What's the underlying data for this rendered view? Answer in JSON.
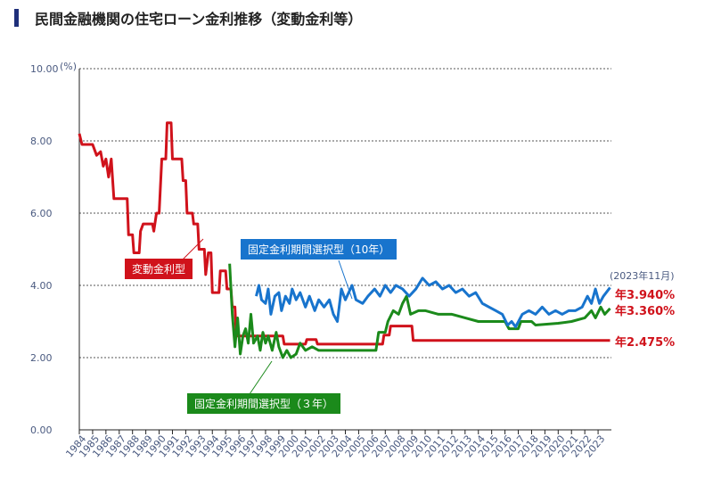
{
  "title": "民間金融機関の住宅ローン金利推移（変動金利等）",
  "chart_data": {
    "type": "line",
    "title": "民間金融機関の住宅ローン金利推移（変動金利等）",
    "ylabel": "(%)",
    "ylim": [
      0,
      10
    ],
    "yticks": [
      "0.00",
      "2.00",
      "4.00",
      "6.00",
      "8.00",
      "10.00"
    ],
    "xlim": [
      1984,
      2024
    ],
    "xticks": [
      "1984",
      "1985",
      "1986",
      "1987",
      "1988",
      "1989",
      "1990",
      "1991",
      "1992",
      "1993",
      "1994",
      "1995",
      "1996",
      "1997",
      "1998",
      "1999",
      "2000",
      "2001",
      "2002",
      "2003",
      "2004",
      "2005",
      "2006",
      "2007",
      "2008",
      "2009",
      "2010",
      "2011",
      "2012",
      "2013",
      "2014",
      "2015",
      "2016",
      "2017",
      "2018",
      "2019",
      "2020",
      "2021",
      "2022",
      "2023"
    ],
    "grid": "horizontal dotted",
    "note": "(2023年11月)",
    "series": [
      {
        "name": "変動金利型",
        "color": "#d0121b",
        "end_label": "年2.475%",
        "points": [
          [
            1984,
            8.2
          ],
          [
            1984.2,
            7.9
          ],
          [
            1985,
            7.9
          ],
          [
            1985.3,
            7.6
          ],
          [
            1985.6,
            7.7
          ],
          [
            1985.8,
            7.3
          ],
          [
            1986,
            7.5
          ],
          [
            1986.2,
            7.0
          ],
          [
            1986.4,
            7.5
          ],
          [
            1986.6,
            6.4
          ],
          [
            1987.6,
            6.4
          ],
          [
            1987.7,
            5.4
          ],
          [
            1988,
            5.4
          ],
          [
            1988.1,
            4.9
          ],
          [
            1988.5,
            4.9
          ],
          [
            1988.6,
            5.5
          ],
          [
            1988.8,
            5.7
          ],
          [
            1989.5,
            5.7
          ],
          [
            1989.6,
            5.5
          ],
          [
            1989.8,
            6.0
          ],
          [
            1990,
            6.0
          ],
          [
            1990.2,
            7.5
          ],
          [
            1990.5,
            7.5
          ],
          [
            1990.6,
            8.5
          ],
          [
            1990.9,
            8.5
          ],
          [
            1991,
            7.5
          ],
          [
            1991.7,
            7.5
          ],
          [
            1991.8,
            6.9
          ],
          [
            1992,
            6.9
          ],
          [
            1992.1,
            6.0
          ],
          [
            1992.5,
            6.0
          ],
          [
            1992.6,
            5.7
          ],
          [
            1992.9,
            5.7
          ],
          [
            1993,
            5.0
          ],
          [
            1993.4,
            5.0
          ],
          [
            1993.5,
            4.3
          ],
          [
            1993.7,
            4.9
          ],
          [
            1993.9,
            4.9
          ],
          [
            1994,
            3.8
          ],
          [
            1994.5,
            3.8
          ],
          [
            1994.6,
            4.4
          ],
          [
            1995,
            4.4
          ],
          [
            1995.1,
            3.9
          ],
          [
            1995.4,
            3.9
          ],
          [
            1995.5,
            3.4
          ],
          [
            1995.7,
            3.4
          ],
          [
            1995.8,
            2.6
          ],
          [
            1999.3,
            2.6
          ],
          [
            1999.4,
            2.375
          ],
          [
            2001,
            2.375
          ],
          [
            2001.1,
            2.5
          ],
          [
            2001.8,
            2.5
          ],
          [
            2001.9,
            2.375
          ],
          [
            2006.8,
            2.375
          ],
          [
            2006.9,
            2.625
          ],
          [
            2007.3,
            2.625
          ],
          [
            2007.4,
            2.875
          ],
          [
            2009,
            2.875
          ],
          [
            2009.1,
            2.475
          ],
          [
            2023.9,
            2.475
          ]
        ]
      },
      {
        "name": "固定金利期間選択型（３年）",
        "color": "#1b8a1b",
        "end_label": "年3.360%",
        "points": [
          [
            1995.3,
            4.6
          ],
          [
            1995.5,
            3.2
          ],
          [
            1995.7,
            2.3
          ],
          [
            1995.9,
            3.1
          ],
          [
            1996.1,
            2.1
          ],
          [
            1996.3,
            2.6
          ],
          [
            1996.5,
            2.8
          ],
          [
            1996.7,
            2.4
          ],
          [
            1996.9,
            3.2
          ],
          [
            1997.1,
            2.4
          ],
          [
            1997.4,
            2.6
          ],
          [
            1997.6,
            2.2
          ],
          [
            1997.8,
            2.7
          ],
          [
            1998,
            2.4
          ],
          [
            1998.2,
            2.6
          ],
          [
            1998.5,
            2.2
          ],
          [
            1998.8,
            2.7
          ],
          [
            1999,
            2.3
          ],
          [
            1999.3,
            2.0
          ],
          [
            1999.6,
            2.2
          ],
          [
            1999.9,
            2.0
          ],
          [
            2000.3,
            2.1
          ],
          [
            2000.6,
            2.4
          ],
          [
            2001,
            2.2
          ],
          [
            2001.5,
            2.3
          ],
          [
            2002,
            2.2
          ],
          [
            2006.3,
            2.2
          ],
          [
            2006.5,
            2.7
          ],
          [
            2007,
            2.7
          ],
          [
            2007.2,
            3.0
          ],
          [
            2007.6,
            3.3
          ],
          [
            2008,
            3.2
          ],
          [
            2008.3,
            3.5
          ],
          [
            2008.6,
            3.7
          ],
          [
            2008.9,
            3.2
          ],
          [
            2009.5,
            3.3
          ],
          [
            2010,
            3.3
          ],
          [
            2011,
            3.2
          ],
          [
            2012,
            3.2
          ],
          [
            2013,
            3.1
          ],
          [
            2014,
            3.0
          ],
          [
            2015,
            3.0
          ],
          [
            2016,
            3.0
          ],
          [
            2016.3,
            2.8
          ],
          [
            2017,
            2.8
          ],
          [
            2017.2,
            3.0
          ],
          [
            2018,
            3.0
          ],
          [
            2018.3,
            2.9
          ],
          [
            2020,
            2.95
          ],
          [
            2021,
            3.0
          ],
          [
            2022,
            3.1
          ],
          [
            2022.5,
            3.3
          ],
          [
            2022.8,
            3.1
          ],
          [
            2023.2,
            3.4
          ],
          [
            2023.5,
            3.2
          ],
          [
            2023.9,
            3.36
          ]
        ]
      },
      {
        "name": "固定金利期間選択型（10年）",
        "color": "#1874cd",
        "end_label": "年3.940%",
        "points": [
          [
            1997.3,
            3.7
          ],
          [
            1997.5,
            4.0
          ],
          [
            1997.7,
            3.6
          ],
          [
            1998,
            3.5
          ],
          [
            1998.2,
            3.9
          ],
          [
            1998.4,
            3.2
          ],
          [
            1998.7,
            3.7
          ],
          [
            1999,
            3.8
          ],
          [
            1999.2,
            3.3
          ],
          [
            1999.5,
            3.7
          ],
          [
            1999.8,
            3.5
          ],
          [
            2000,
            3.9
          ],
          [
            2000.3,
            3.6
          ],
          [
            2000.6,
            3.8
          ],
          [
            2001,
            3.4
          ],
          [
            2001.3,
            3.7
          ],
          [
            2001.7,
            3.3
          ],
          [
            2002,
            3.6
          ],
          [
            2002.4,
            3.4
          ],
          [
            2002.8,
            3.6
          ],
          [
            2003.1,
            3.2
          ],
          [
            2003.4,
            3.0
          ],
          [
            2003.7,
            3.9
          ],
          [
            2004,
            3.6
          ],
          [
            2004.5,
            4.0
          ],
          [
            2004.8,
            3.6
          ],
          [
            2005.3,
            3.5
          ],
          [
            2005.7,
            3.7
          ],
          [
            2006.2,
            3.9
          ],
          [
            2006.6,
            3.7
          ],
          [
            2007,
            4.0
          ],
          [
            2007.4,
            3.8
          ],
          [
            2007.8,
            4.0
          ],
          [
            2008.3,
            3.9
          ],
          [
            2008.8,
            3.7
          ],
          [
            2009.3,
            3.9
          ],
          [
            2009.8,
            4.2
          ],
          [
            2010.3,
            4.0
          ],
          [
            2010.8,
            4.1
          ],
          [
            2011.3,
            3.9
          ],
          [
            2011.8,
            4.0
          ],
          [
            2012.3,
            3.8
          ],
          [
            2012.8,
            3.9
          ],
          [
            2013.3,
            3.7
          ],
          [
            2013.8,
            3.8
          ],
          [
            2014.3,
            3.5
          ],
          [
            2014.8,
            3.4
          ],
          [
            2015.3,
            3.3
          ],
          [
            2015.8,
            3.2
          ],
          [
            2016.2,
            2.9
          ],
          [
            2016.5,
            3.0
          ],
          [
            2016.8,
            2.85
          ],
          [
            2017.3,
            3.2
          ],
          [
            2017.8,
            3.3
          ],
          [
            2018.3,
            3.2
          ],
          [
            2018.8,
            3.4
          ],
          [
            2019.3,
            3.2
          ],
          [
            2019.8,
            3.3
          ],
          [
            2020.3,
            3.2
          ],
          [
            2020.8,
            3.3
          ],
          [
            2021.3,
            3.3
          ],
          [
            2021.8,
            3.4
          ],
          [
            2022.2,
            3.7
          ],
          [
            2022.5,
            3.5
          ],
          [
            2022.8,
            3.9
          ],
          [
            2023.1,
            3.5
          ],
          [
            2023.4,
            3.7
          ],
          [
            2023.9,
            3.94
          ]
        ]
      }
    ]
  }
}
